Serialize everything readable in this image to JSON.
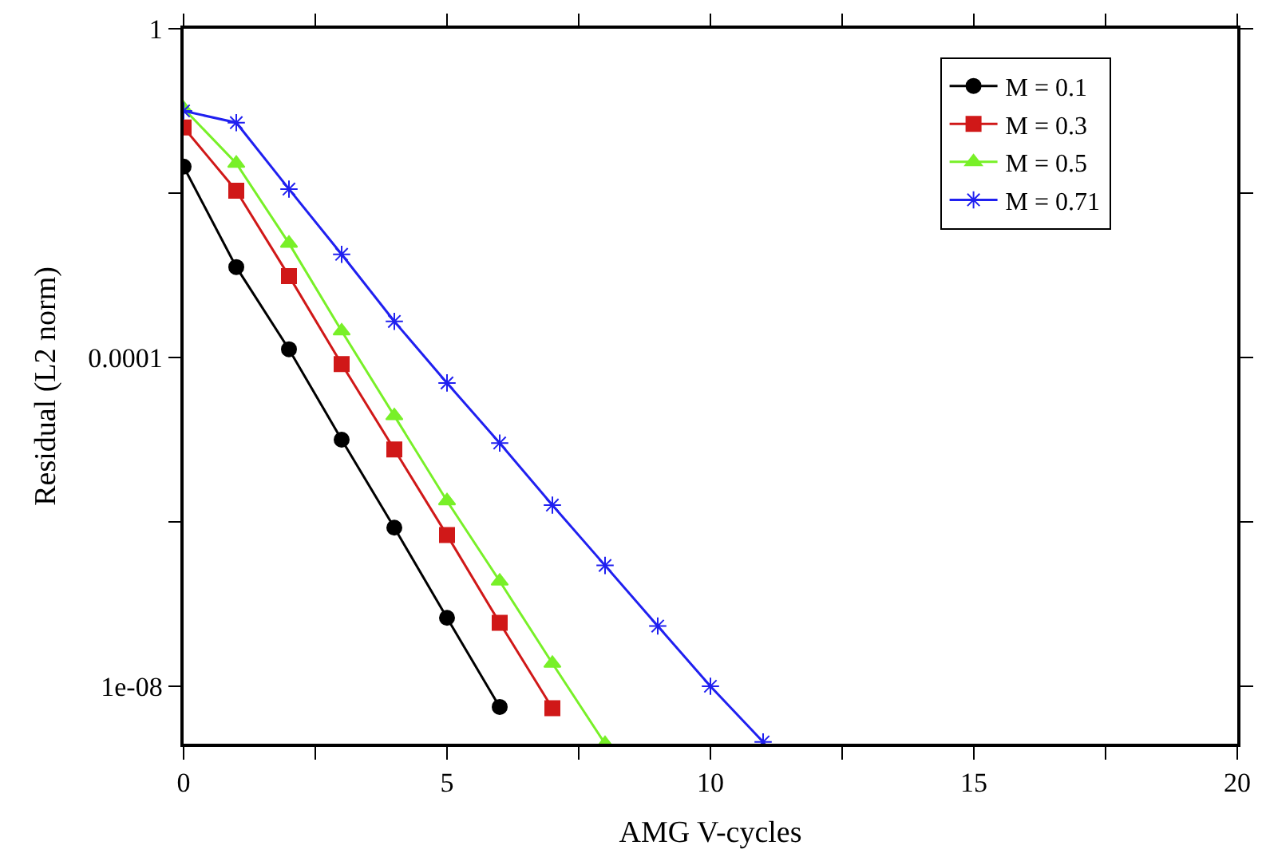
{
  "chart_data": {
    "type": "line",
    "xlabel": "AMG V-cycles",
    "ylabel": "Residual (L2 norm)",
    "log": "y",
    "xlim": [
      0,
      20
    ],
    "ylim": [
      2e-09,
      1
    ],
    "xticks": [
      0,
      {
        "value": 2.5,
        "label": null
      },
      5,
      {
        "value": 7.5,
        "label": null
      },
      10,
      {
        "value": 12.5,
        "label": null
      },
      15,
      {
        "value": 17.5,
        "label": null
      },
      20
    ],
    "yticks": [
      {
        "value": 1e-08,
        "label": "1e-08"
      },
      {
        "value": 1e-06,
        "label": null
      },
      {
        "value": 0.0001,
        "label": "0.0001"
      },
      {
        "value": 0.01,
        "label": null
      },
      1
    ],
    "legend": "top right",
    "line_style": "solid",
    "series": [
      {
        "name": "M = 0.1",
        "color": "#000000",
        "marker": "circle",
        "x": [
          0,
          1,
          2,
          3,
          4,
          5,
          6
        ],
        "values": [
          0.021,
          0.00126,
          0.000126,
          1e-05,
          8.5e-07,
          6.8e-08,
          5.6e-09
        ]
      },
      {
        "name": "M = 0.3",
        "color": "#d01818",
        "marker": "square",
        "x": [
          0,
          1,
          2,
          3,
          4,
          5,
          6,
          7
        ],
        "values": [
          0.063,
          0.0107,
          0.00098,
          8.3e-05,
          7.6e-06,
          6.9e-07,
          5.9e-08,
          5.4e-09
        ]
      },
      {
        "name": "M = 0.5",
        "color": "#78f028",
        "marker": "triangle",
        "x": [
          0,
          1,
          2,
          3,
          4,
          5,
          6,
          7,
          8
        ],
        "values": [
          0.107,
          0.023,
          0.00245,
          0.00021,
          1.95e-05,
          1.8e-06,
          1.9e-07,
          1.9e-08,
          2e-09
        ]
      },
      {
        "name": "M = 0.71",
        "color": "#2020f0",
        "marker": "cross",
        "x": [
          0,
          1,
          2,
          3,
          4,
          5,
          6,
          7,
          8,
          9,
          10,
          11
        ],
        "values": [
          0.1,
          0.072,
          0.0112,
          0.0018,
          0.000275,
          4.9e-05,
          9.1e-06,
          1.6e-06,
          2.95e-07,
          5.4e-08,
          1e-08,
          2.1e-09
        ]
      }
    ]
  }
}
